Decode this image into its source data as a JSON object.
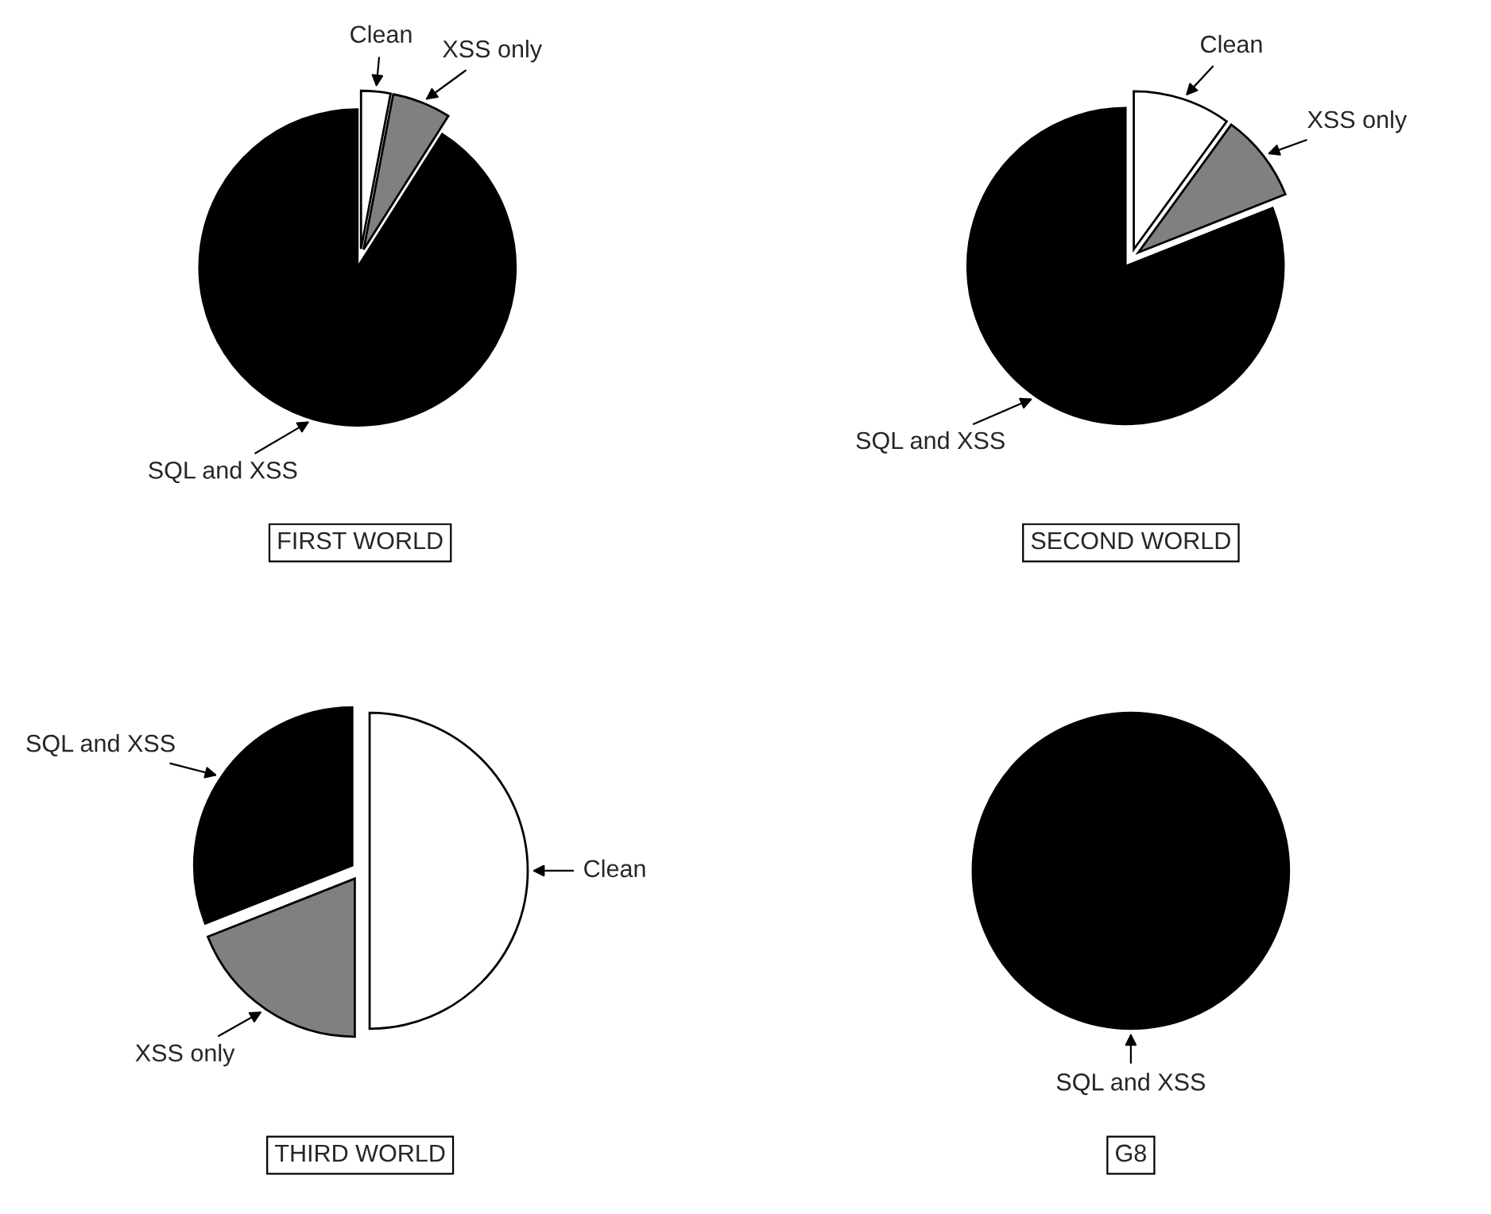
{
  "chart_data": [
    {
      "type": "pie",
      "title": "FIRST WORLD",
      "categories": [
        "Clean",
        "XSS only",
        "SQL and XSS"
      ],
      "values": [
        3,
        6,
        91
      ],
      "colors": [
        "#ffffff",
        "#808080",
        "#000000"
      ]
    },
    {
      "type": "pie",
      "title": "SECOND WORLD",
      "categories": [
        "Clean",
        "XSS only",
        "SQL and XSS"
      ],
      "values": [
        10,
        9,
        81
      ],
      "colors": [
        "#ffffff",
        "#808080",
        "#000000"
      ]
    },
    {
      "type": "pie",
      "title": "THIRD WORLD",
      "categories": [
        "Clean",
        "XSS only",
        "SQL and XSS"
      ],
      "values": [
        50,
        19,
        31
      ],
      "colors": [
        "#ffffff",
        "#808080",
        "#000000"
      ]
    },
    {
      "type": "pie",
      "title": "G8",
      "categories": [
        "SQL and XSS"
      ],
      "values": [
        100
      ],
      "colors": [
        "#000000"
      ]
    }
  ]
}
